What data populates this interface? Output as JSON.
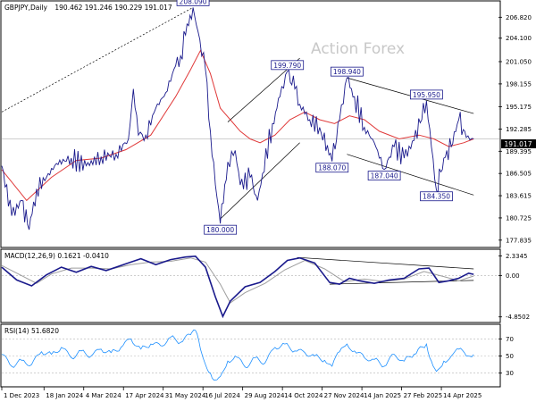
{
  "chart_data": {
    "type": "line",
    "header": {
      "symbol_label": "GBPJPY,Daily",
      "ohlc_values": "190.462 191.246 190.229 191.017"
    },
    "watermark": "Action Forex",
    "colors": {
      "price": "#1a1a8c",
      "ema": "#e03a3a",
      "macd": "#1a1a8c",
      "signal": "#9e9e9e",
      "rsi": "#1e90ff",
      "trendline": "#000000",
      "background": "#ffffff"
    },
    "x_tick_labels": [
      "1 Dec 2023",
      "18 Jan 2024",
      "4 Mar 2024",
      "17 Apr 2024",
      "31 May 2024",
      "16 Jul 2024",
      "29 Aug 2024",
      "14 Oct 2024",
      "27 Nov 2024",
      "14 Jan 2025",
      "27 Feb 2025",
      "14 Apr 2025"
    ],
    "price_panel": {
      "y_ticks": [
        "206.820",
        "204.100",
        "201.050",
        "198.155",
        "195.175",
        "192.285",
        "189.395",
        "186.505",
        "183.615",
        "180.725",
        "177.835"
      ],
      "last_price_label": "191.017",
      "ylim": [
        177.0,
        208.6
      ],
      "key_points": [
        {
          "label": "208.090",
          "x": 0.385,
          "y": 208.09
        },
        {
          "label": "180.000",
          "x": 0.44,
          "y": 180.0
        },
        {
          "label": "199.790",
          "x": 0.575,
          "y": 199.79
        },
        {
          "label": "188.070",
          "x": 0.665,
          "y": 188.07
        },
        {
          "label": "198.940",
          "x": 0.695,
          "y": 198.94
        },
        {
          "label": "187.040",
          "x": 0.77,
          "y": 187.04
        },
        {
          "label": "195.950",
          "x": 0.855,
          "y": 195.95
        },
        {
          "label": "184.350",
          "x": 0.875,
          "y": 184.35
        }
      ],
      "price_path": [
        [
          0.0,
          187.5
        ],
        [
          0.02,
          181.0
        ],
        [
          0.04,
          183.0
        ],
        [
          0.055,
          179.2
        ],
        [
          0.07,
          184.5
        ],
        [
          0.09,
          186.0
        ],
        [
          0.11,
          187.8
        ],
        [
          0.14,
          188.5
        ],
        [
          0.17,
          187.5
        ],
        [
          0.2,
          188.7
        ],
        [
          0.23,
          189.0
        ],
        [
          0.255,
          191.0
        ],
        [
          0.265,
          197.5
        ],
        [
          0.275,
          191.5
        ],
        [
          0.29,
          191.5
        ],
        [
          0.31,
          195.0
        ],
        [
          0.33,
          197.0
        ],
        [
          0.35,
          200.5
        ],
        [
          0.36,
          201.8
        ],
        [
          0.37,
          204.5
        ],
        [
          0.385,
          208.09
        ],
        [
          0.395,
          205.0
        ],
        [
          0.41,
          200.0
        ],
        [
          0.42,
          192.0
        ],
        [
          0.43,
          185.0
        ],
        [
          0.44,
          180.0
        ],
        [
          0.455,
          188.0
        ],
        [
          0.47,
          189.5
        ],
        [
          0.48,
          185.0
        ],
        [
          0.5,
          186.0
        ],
        [
          0.515,
          183.0
        ],
        [
          0.525,
          186.5
        ],
        [
          0.545,
          193.0
        ],
        [
          0.56,
          196.5
        ],
        [
          0.575,
          199.79
        ],
        [
          0.59,
          197.5
        ],
        [
          0.6,
          195.5
        ],
        [
          0.62,
          193.5
        ],
        [
          0.64,
          192.5
        ],
        [
          0.665,
          188.07
        ],
        [
          0.68,
          193.5
        ],
        [
          0.695,
          198.94
        ],
        [
          0.71,
          196.5
        ],
        [
          0.73,
          192.5
        ],
        [
          0.75,
          190.5
        ],
        [
          0.77,
          187.04
        ],
        [
          0.79,
          190.0
        ],
        [
          0.81,
          188.5
        ],
        [
          0.83,
          190.8
        ],
        [
          0.855,
          195.95
        ],
        [
          0.865,
          190.0
        ],
        [
          0.875,
          184.35
        ],
        [
          0.89,
          188.5
        ],
        [
          0.905,
          190.0
        ],
        [
          0.92,
          193.5
        ],
        [
          0.935,
          191.2
        ],
        [
          0.95,
          191.017
        ]
      ],
      "ema_path": [
        [
          0.0,
          187.0
        ],
        [
          0.05,
          183.0
        ],
        [
          0.1,
          186.0
        ],
        [
          0.15,
          188.2
        ],
        [
          0.2,
          188.5
        ],
        [
          0.25,
          189.6
        ],
        [
          0.3,
          191.5
        ],
        [
          0.35,
          196.5
        ],
        [
          0.38,
          200.0
        ],
        [
          0.4,
          202.5
        ],
        [
          0.42,
          199.5
        ],
        [
          0.44,
          195.0
        ],
        [
          0.46,
          193.5
        ],
        [
          0.48,
          192.0
        ],
        [
          0.5,
          191.0
        ],
        [
          0.52,
          190.5
        ],
        [
          0.55,
          191.5
        ],
        [
          0.58,
          193.5
        ],
        [
          0.61,
          194.5
        ],
        [
          0.64,
          193.5
        ],
        [
          0.67,
          193.0
        ],
        [
          0.7,
          194.0
        ],
        [
          0.73,
          193.5
        ],
        [
          0.76,
          192.0
        ],
        [
          0.8,
          191.0
        ],
        [
          0.84,
          191.5
        ],
        [
          0.87,
          191.0
        ],
        [
          0.9,
          190.0
        ],
        [
          0.93,
          190.5
        ],
        [
          0.95,
          191.0
        ]
      ],
      "trendlines": [
        {
          "from": [
            0.0,
            194.5
          ],
          "to": [
            0.385,
            208.09
          ],
          "style": "dashed"
        },
        {
          "from": [
            0.455,
            193.2
          ],
          "to": [
            0.6,
            201.5
          ],
          "style": "solid"
        },
        {
          "from": [
            0.44,
            180.6
          ],
          "to": [
            0.6,
            190.5
          ],
          "style": "solid"
        },
        {
          "from": [
            0.695,
            198.94
          ],
          "to": [
            0.95,
            194.3
          ],
          "style": "solid"
        },
        {
          "from": [
            0.695,
            189.0
          ],
          "to": [
            0.95,
            183.7
          ],
          "style": "solid"
        }
      ],
      "reference_line_y": 191.017
    },
    "macd_panel": {
      "label": "MACD(12,26,9) 0.1621 -0.0410",
      "y_ticks": [
        "2.3345",
        "0.00",
        "-4.8502"
      ],
      "ylim": [
        -5.3,
        2.8
      ],
      "macd_path": [
        [
          0.0,
          1.0
        ],
        [
          0.03,
          -0.5
        ],
        [
          0.06,
          -1.2
        ],
        [
          0.09,
          0.1
        ],
        [
          0.12,
          1.0
        ],
        [
          0.15,
          0.4
        ],
        [
          0.18,
          1.1
        ],
        [
          0.21,
          0.6
        ],
        [
          0.25,
          1.4
        ],
        [
          0.28,
          2.0
        ],
        [
          0.31,
          1.3
        ],
        [
          0.34,
          1.9
        ],
        [
          0.37,
          2.2
        ],
        [
          0.39,
          2.3
        ],
        [
          0.41,
          1.0
        ],
        [
          0.43,
          -2.5
        ],
        [
          0.445,
          -4.8
        ],
        [
          0.46,
          -3.0
        ],
        [
          0.49,
          -1.3
        ],
        [
          0.52,
          -0.8
        ],
        [
          0.55,
          0.5
        ],
        [
          0.575,
          1.8
        ],
        [
          0.6,
          2.1
        ],
        [
          0.63,
          1.5
        ],
        [
          0.66,
          -0.8
        ],
        [
          0.68,
          -1.0
        ],
        [
          0.7,
          -0.3
        ],
        [
          0.72,
          -0.6
        ],
        [
          0.75,
          -0.9
        ],
        [
          0.78,
          -0.5
        ],
        [
          0.81,
          -0.3
        ],
        [
          0.84,
          0.8
        ],
        [
          0.86,
          0.9
        ],
        [
          0.88,
          -0.8
        ],
        [
          0.9,
          -0.6
        ],
        [
          0.92,
          -0.3
        ],
        [
          0.94,
          0.3
        ],
        [
          0.95,
          0.16
        ]
      ],
      "signal_path": [
        [
          0.0,
          1.2
        ],
        [
          0.04,
          0.0
        ],
        [
          0.07,
          -0.9
        ],
        [
          0.1,
          0.2
        ],
        [
          0.14,
          0.9
        ],
        [
          0.18,
          0.9
        ],
        [
          0.22,
          0.8
        ],
        [
          0.26,
          1.3
        ],
        [
          0.3,
          1.6
        ],
        [
          0.34,
          1.7
        ],
        [
          0.38,
          2.1
        ],
        [
          0.41,
          1.6
        ],
        [
          0.44,
          -1.0
        ],
        [
          0.46,
          -3.2
        ],
        [
          0.49,
          -2.0
        ],
        [
          0.53,
          -0.9
        ],
        [
          0.57,
          0.7
        ],
        [
          0.61,
          1.8
        ],
        [
          0.65,
          0.8
        ],
        [
          0.69,
          -0.7
        ],
        [
          0.73,
          -0.4
        ],
        [
          0.77,
          -0.7
        ],
        [
          0.81,
          -0.4
        ],
        [
          0.85,
          0.5
        ],
        [
          0.89,
          -0.1
        ],
        [
          0.92,
          -0.6
        ],
        [
          0.95,
          -0.04
        ]
      ],
      "trendlines": [
        {
          "from": [
            0.595,
            2.15
          ],
          "to": [
            0.95,
            0.8
          ]
        },
        {
          "from": [
            0.66,
            -1.0
          ],
          "to": [
            0.95,
            -0.55
          ]
        }
      ]
    },
    "rsi_panel": {
      "label": "RSI(14) 51.6820",
      "y_ticks": [
        "70",
        "50",
        "30"
      ],
      "ylim": [
        15,
        85
      ],
      "rsi_path": [
        [
          0.0,
          52
        ],
        [
          0.02,
          38
        ],
        [
          0.04,
          45
        ],
        [
          0.06,
          40
        ],
        [
          0.08,
          55
        ],
        [
          0.1,
          52
        ],
        [
          0.12,
          60
        ],
        [
          0.14,
          48
        ],
        [
          0.16,
          56
        ],
        [
          0.18,
          50
        ],
        [
          0.2,
          58
        ],
        [
          0.22,
          54
        ],
        [
          0.24,
          60
        ],
        [
          0.26,
          70
        ],
        [
          0.28,
          58
        ],
        [
          0.3,
          64
        ],
        [
          0.32,
          62
        ],
        [
          0.34,
          72
        ],
        [
          0.36,
          66
        ],
        [
          0.38,
          75
        ],
        [
          0.39,
          80
        ],
        [
          0.4,
          58
        ],
        [
          0.41,
          40
        ],
        [
          0.42,
          30
        ],
        [
          0.43,
          22
        ],
        [
          0.44,
          26
        ],
        [
          0.455,
          44
        ],
        [
          0.47,
          50
        ],
        [
          0.49,
          37
        ],
        [
          0.51,
          48
        ],
        [
          0.53,
          42
        ],
        [
          0.55,
          60
        ],
        [
          0.57,
          64
        ],
        [
          0.59,
          56
        ],
        [
          0.61,
          54
        ],
        [
          0.63,
          50
        ],
        [
          0.65,
          45
        ],
        [
          0.665,
          38
        ],
        [
          0.68,
          55
        ],
        [
          0.695,
          64
        ],
        [
          0.71,
          56
        ],
        [
          0.73,
          48
        ],
        [
          0.75,
          46
        ],
        [
          0.77,
          38
        ],
        [
          0.79,
          52
        ],
        [
          0.81,
          44
        ],
        [
          0.83,
          52
        ],
        [
          0.855,
          64
        ],
        [
          0.865,
          44
        ],
        [
          0.875,
          32
        ],
        [
          0.89,
          44
        ],
        [
          0.905,
          50
        ],
        [
          0.92,
          58
        ],
        [
          0.935,
          50
        ],
        [
          0.95,
          51.68
        ]
      ]
    }
  }
}
